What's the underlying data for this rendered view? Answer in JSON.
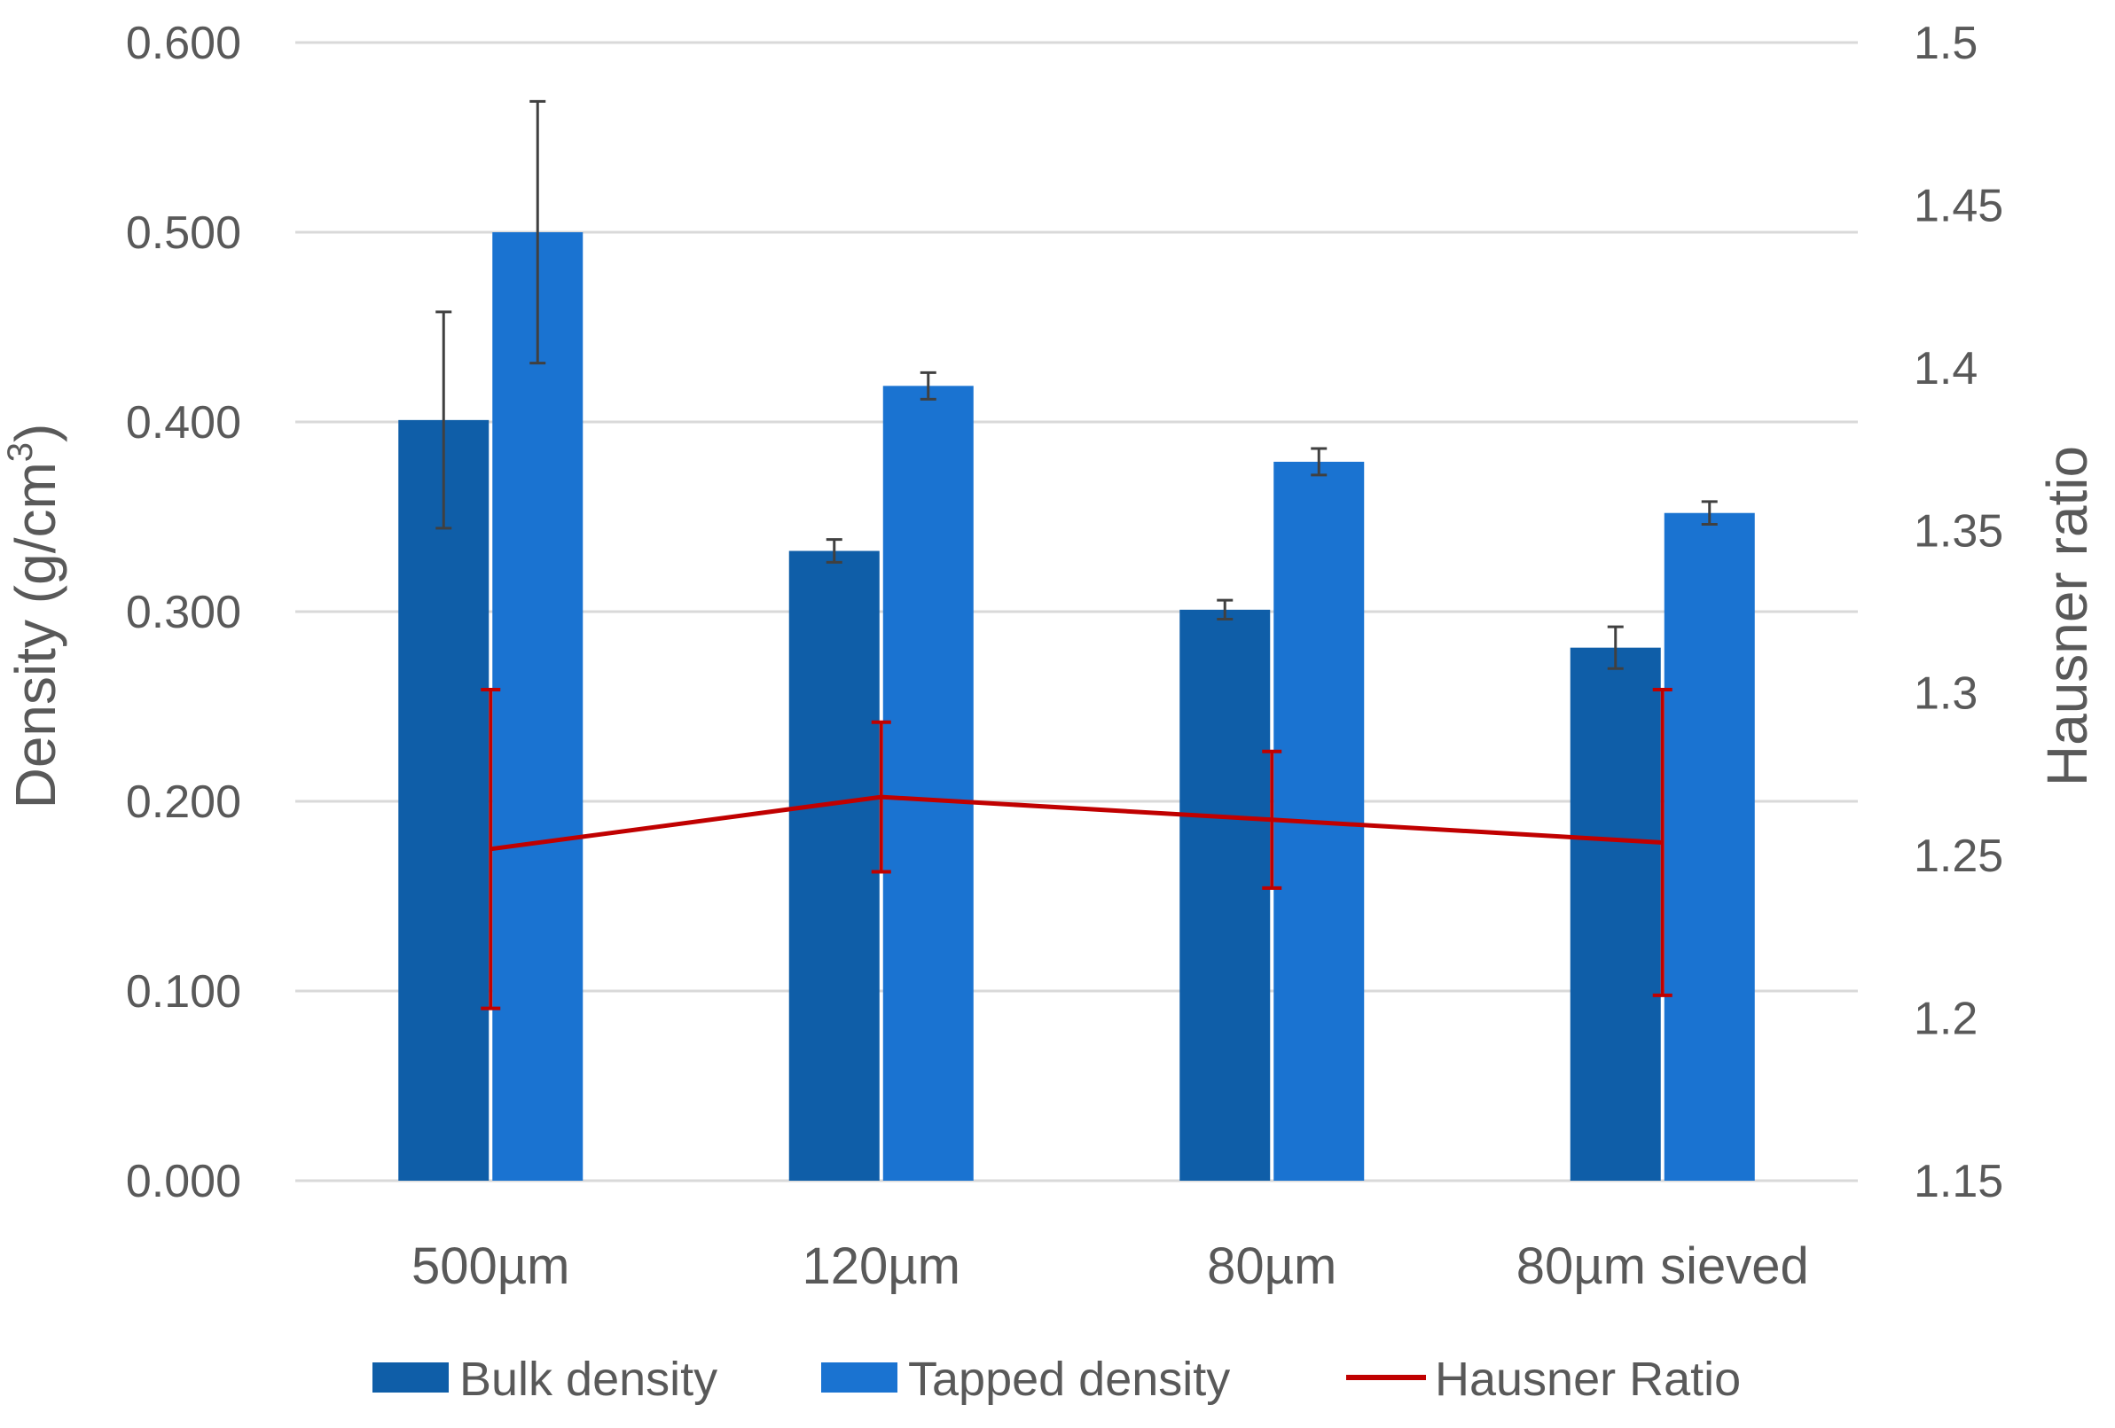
{
  "chart_data": {
    "type": "bar",
    "title": "",
    "categories": [
      "500µm",
      "120µm",
      "80µm",
      "80µm sieved"
    ],
    "series": [
      {
        "name": "Bulk density",
        "kind": "bar",
        "axis": "left",
        "color": "#0f5ea8",
        "values": [
          0.401,
          0.332,
          0.301,
          0.281
        ],
        "errors": [
          0.057,
          0.006,
          0.005,
          0.011
        ]
      },
      {
        "name": "Tapped density",
        "kind": "bar",
        "axis": "left",
        "color": "#1a73d1",
        "values": [
          0.5,
          0.419,
          0.379,
          0.352
        ],
        "errors": [
          0.069,
          0.007,
          0.007,
          0.006
        ]
      },
      {
        "name": "Hausner Ratio",
        "kind": "line",
        "axis": "right",
        "color": "#c00000",
        "values": [
          1.252,
          1.268,
          1.261,
          1.254
        ],
        "errors": [
          0.049,
          0.023,
          0.021,
          0.047
        ]
      }
    ],
    "y_left": {
      "label_base": "Density (g/cm",
      "label_sup": "3",
      "label_end": ")",
      "min": 0,
      "max": 0.6,
      "ticks": [
        "0.000",
        "0.100",
        "0.200",
        "0.300",
        "0.400",
        "0.500",
        "0.600"
      ]
    },
    "y_right": {
      "label": "Hausner ratio",
      "min": 1.15,
      "max": 1.5,
      "ticks": [
        "1.15",
        "1.2",
        "1.25",
        "1.3",
        "1.35",
        "1.4",
        "1.45",
        "1.5"
      ]
    },
    "grid": true,
    "legend_position": "bottom",
    "error_bar_color": "#404040"
  }
}
